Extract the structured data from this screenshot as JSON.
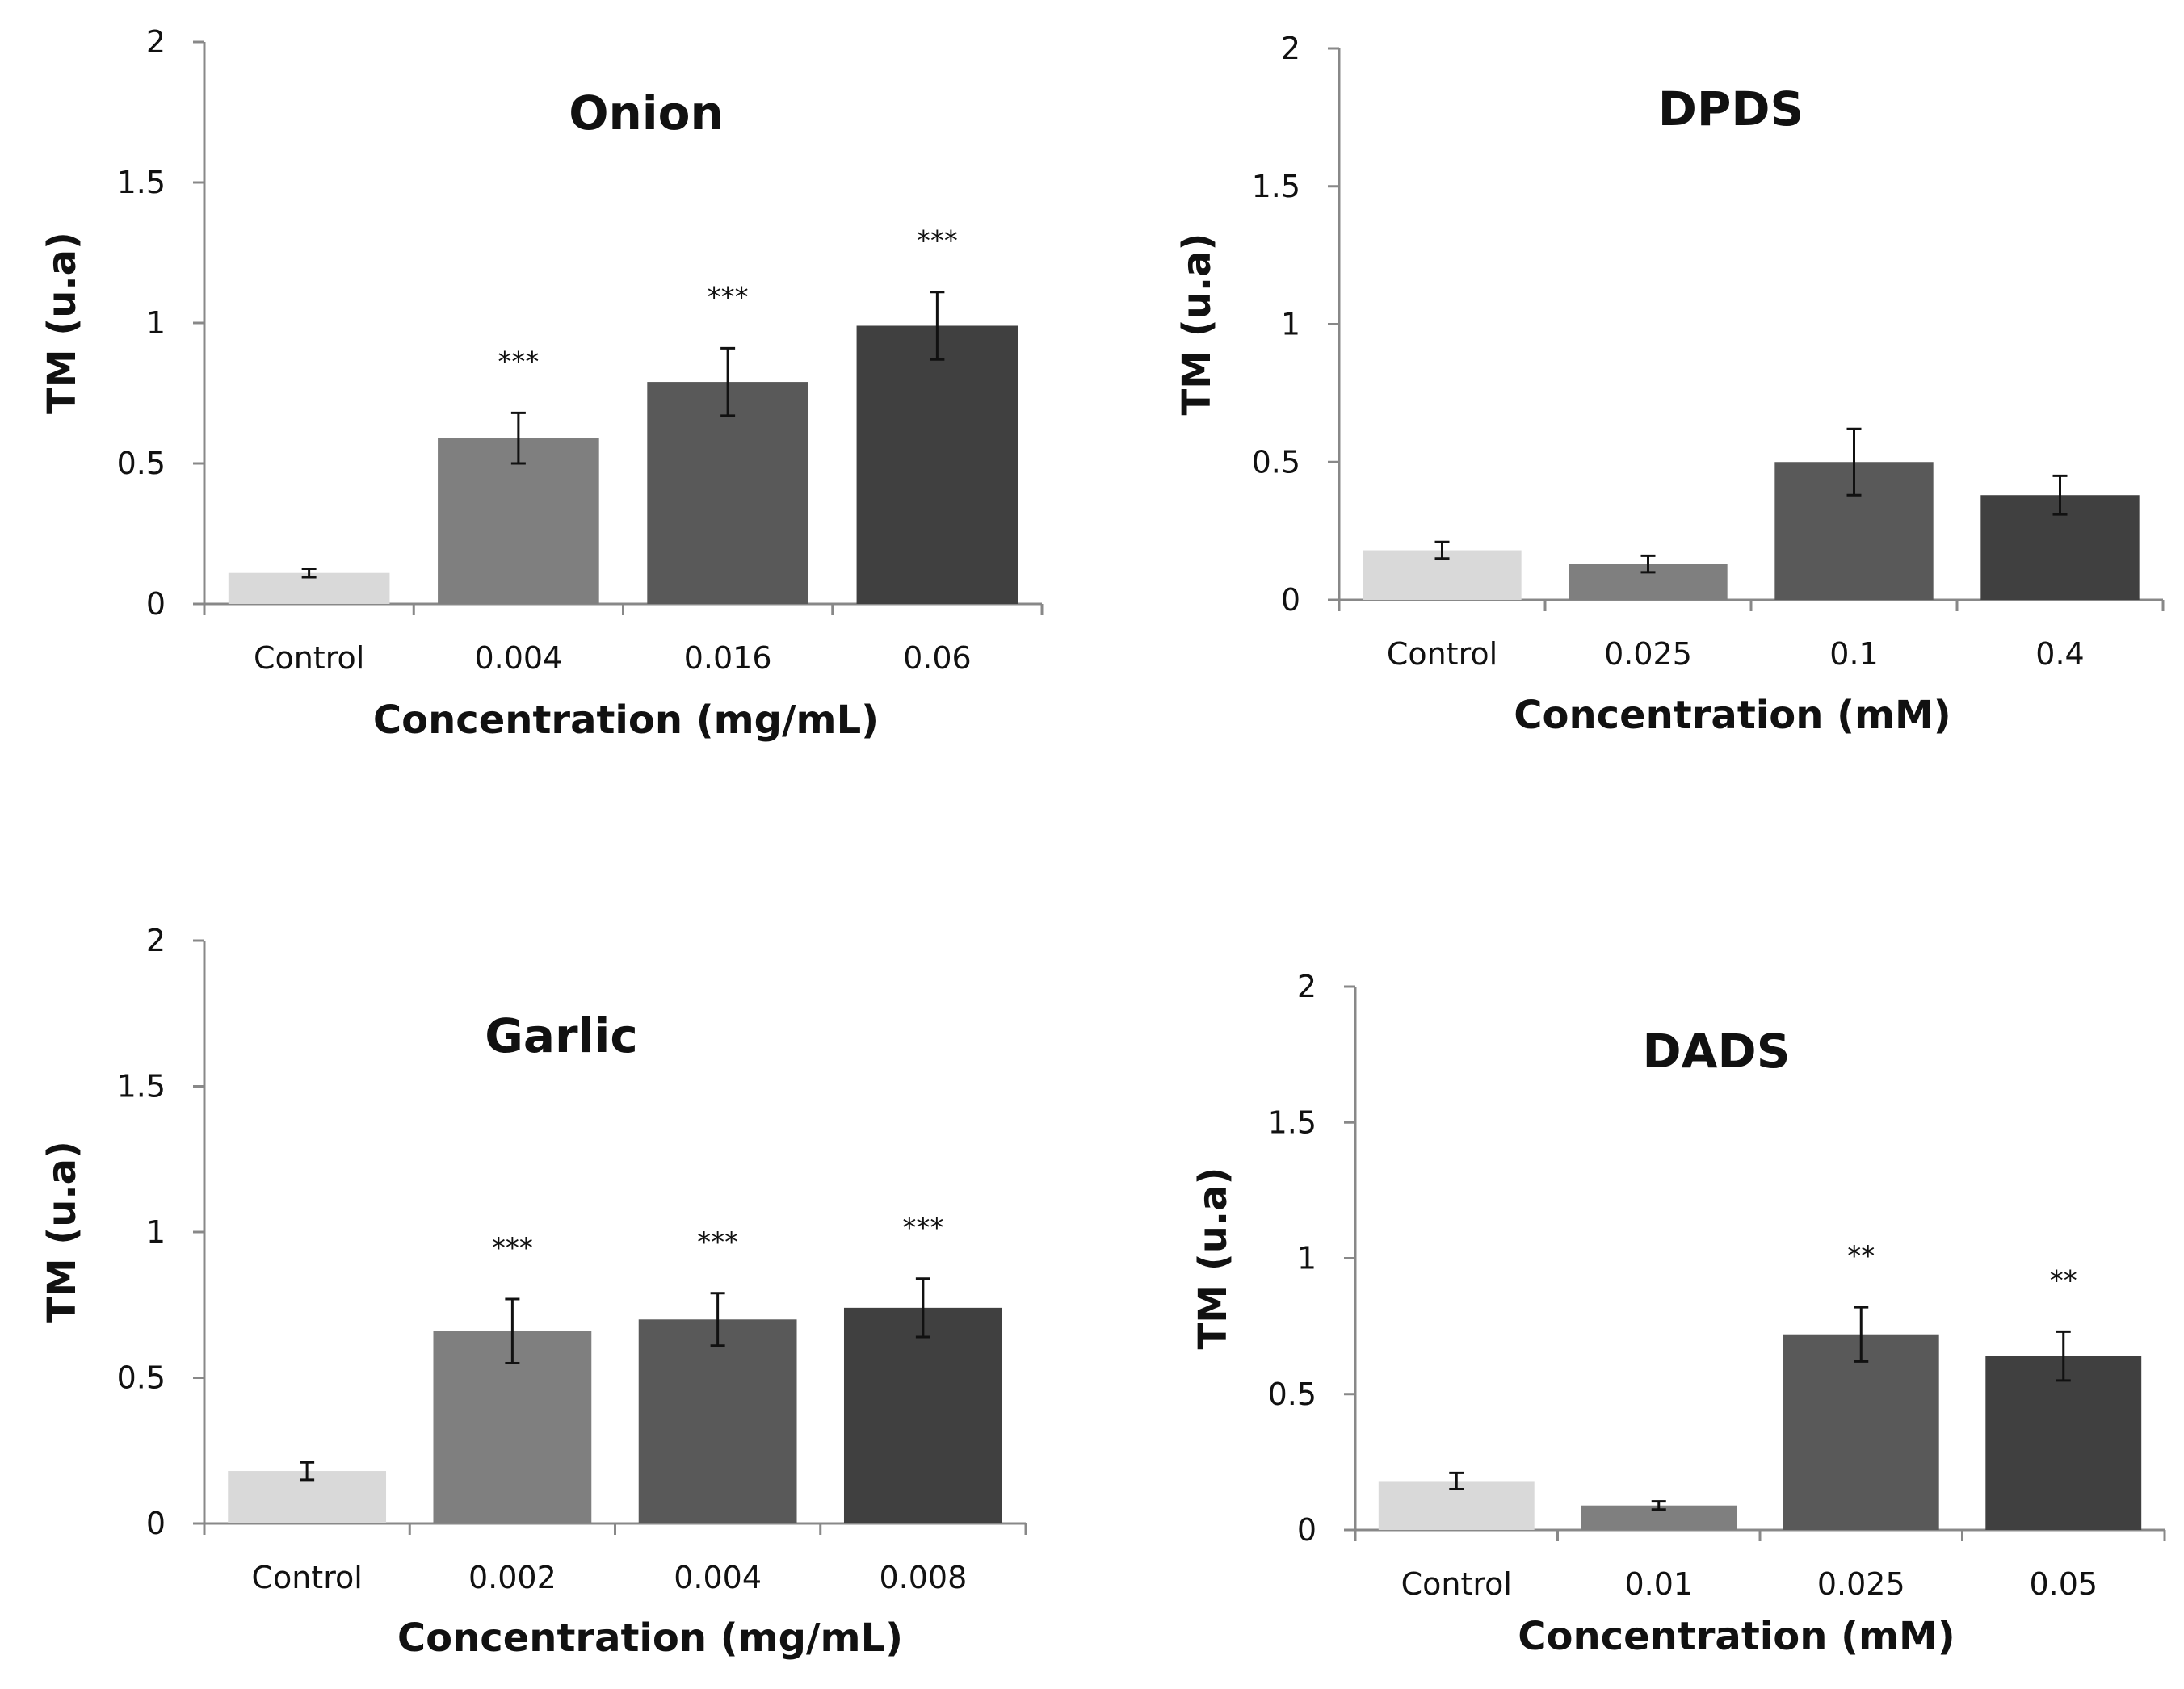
{
  "chart_data": [
    {
      "type": "bar",
      "title": "Onion",
      "xlabel": "Concentration (mg/mL)",
      "ylabel": "TM (u.a)",
      "ylim": [
        0,
        2
      ],
      "yticks": [
        "0",
        "0.5",
        "1",
        "1.5",
        "2"
      ],
      "categories": [
        "Control",
        "0.004",
        "0.016",
        "0.06"
      ],
      "values": [
        0.11,
        0.59,
        0.79,
        0.99
      ],
      "errors": [
        0.015,
        0.09,
        0.12,
        0.12
      ],
      "significance": [
        "",
        "***",
        "***",
        "***"
      ],
      "colors": [
        "#d9d9d9",
        "#7f7f7f",
        "#595959",
        "#404040"
      ]
    },
    {
      "type": "bar",
      "title": "DPDS",
      "xlabel": "Concentration (mM)",
      "ylabel": "TM (u.a)",
      "ylim": [
        0,
        2
      ],
      "yticks": [
        "0",
        "0.5",
        "1",
        "1.5",
        "2"
      ],
      "categories": [
        "Control",
        "0.025",
        "0.1",
        "0.4"
      ],
      "values": [
        0.18,
        0.13,
        0.5,
        0.38
      ],
      "errors": [
        0.03,
        0.03,
        0.12,
        0.07
      ],
      "significance": [
        "",
        "",
        "",
        ""
      ],
      "colors": [
        "#d9d9d9",
        "#7f7f7f",
        "#595959",
        "#404040"
      ]
    },
    {
      "type": "bar",
      "title": "Garlic",
      "xlabel": "Concentration (mg/mL)",
      "ylabel": "TM (u.a)",
      "ylim": [
        0,
        2
      ],
      "yticks": [
        "0",
        "0.5",
        "1",
        "1.5",
        "2"
      ],
      "categories": [
        "Control",
        "0.002",
        "0.004",
        "0.008"
      ],
      "values": [
        0.18,
        0.66,
        0.7,
        0.74
      ],
      "errors": [
        0.03,
        0.11,
        0.09,
        0.1
      ],
      "significance": [
        "",
        "***",
        "***",
        "***"
      ],
      "colors": [
        "#d9d9d9",
        "#7f7f7f",
        "#595959",
        "#404040"
      ]
    },
    {
      "type": "bar",
      "title": "DADS",
      "xlabel": "Concentration (mM)",
      "ylabel": "TM (u.a)",
      "ylim": [
        0,
        2
      ],
      "yticks": [
        "0",
        "0.5",
        "1",
        "1.5",
        "2"
      ],
      "categories": [
        "Control",
        "0.01",
        "0.025",
        "0.05"
      ],
      "values": [
        0.18,
        0.09,
        0.72,
        0.64
      ],
      "errors": [
        0.03,
        0.015,
        0.1,
        0.09
      ],
      "significance": [
        "",
        "",
        "**",
        "**"
      ],
      "colors": [
        "#d9d9d9",
        "#7f7f7f",
        "#595959",
        "#404040"
      ]
    }
  ]
}
